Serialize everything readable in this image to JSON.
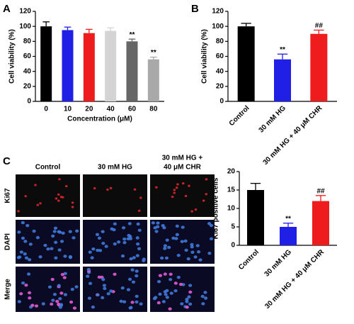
{
  "chart_data": [
    {
      "type": "bar",
      "panel": "A",
      "ylabel": "Cell viability (%)",
      "xlabel": "Concentration (μM)",
      "categories": [
        "0",
        "10",
        "20",
        "40",
        "60",
        "80"
      ],
      "values": [
        100,
        95,
        91,
        94,
        80,
        56
      ],
      "errors": [
        6,
        4,
        5,
        4,
        3,
        3
      ],
      "colors": [
        "#000000",
        "#1f1fe6",
        "#ee1c1c",
        "#d4d4d4",
        "#666666",
        "#a9a9a9"
      ],
      "annotations": [
        null,
        null,
        null,
        null,
        "**",
        "**"
      ],
      "ylim": [
        0,
        120
      ],
      "yticks": [
        0,
        20,
        40,
        60,
        80,
        100,
        120
      ]
    },
    {
      "type": "bar",
      "panel": "B",
      "ylabel": "Cell viability (%)",
      "categories": [
        "Control",
        "30 mM HG",
        "30 mM HG + 40 μM CHR"
      ],
      "values": [
        100,
        56,
        90
      ],
      "errors": [
        4,
        7,
        5
      ],
      "colors": [
        "#000000",
        "#1f1fe6",
        "#ee1c1c"
      ],
      "annotations": [
        null,
        "**",
        "##"
      ],
      "ylim": [
        0,
        120
      ],
      "yticks": [
        0,
        20,
        40,
        60,
        80,
        100,
        120
      ]
    },
    {
      "type": "bar",
      "panel": "C",
      "ylabel": "Ki67 positive cells",
      "categories": [
        "Control",
        "30 mM HG",
        "30 mM HG + 40 μM CHR"
      ],
      "values": [
        15,
        5,
        12
      ],
      "errors": [
        1.8,
        1,
        1.5
      ],
      "colors": [
        "#000000",
        "#1f1fe6",
        "#ee1c1c"
      ],
      "annotations": [
        null,
        "**",
        "##"
      ],
      "ylim": [
        0,
        20
      ],
      "yticks": [
        0,
        5,
        10,
        15,
        20
      ]
    }
  ],
  "image_grid": {
    "columns": [
      [
        "Control"
      ],
      [
        "30 mM HG"
      ],
      [
        "30 mM HG +",
        "40 μM CHR"
      ]
    ],
    "rows": [
      "Ki67",
      "DAPI",
      "Merge"
    ]
  }
}
